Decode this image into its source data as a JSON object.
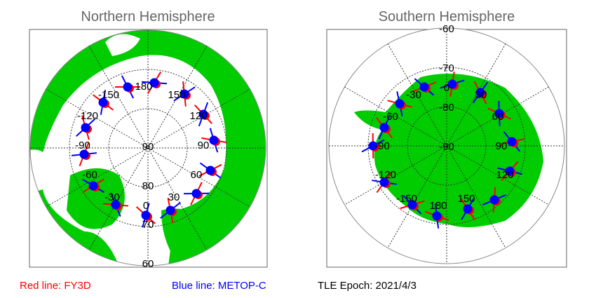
{
  "north": {
    "title": "Northern Hemisphere",
    "lon_labels": [
      "-150",
      "180",
      "150",
      "-120",
      "120",
      "-90",
      "90",
      "-60",
      "60",
      "-30",
      "30",
      "0"
    ],
    "lat_labels": [
      "90",
      "80",
      "70",
      "60"
    ]
  },
  "south": {
    "title": "Southern Hemisphere",
    "lon_labels": [
      "-30",
      "0",
      "30",
      "-60",
      "60",
      "-90",
      "90",
      "-120",
      "120",
      "-150",
      "150",
      "180"
    ],
    "lat_labels": [
      "-60",
      "-70",
      "-80",
      "-90"
    ]
  },
  "legend": {
    "red": "Red line: FY3D",
    "blue": "Blue line: METOP-C",
    "epoch": "TLE Epoch: 2021/4/3"
  },
  "colors": {
    "land": "#00cc00",
    "fy3d": "#ff0000",
    "metopc": "#0000ff",
    "title": "#666666"
  }
}
